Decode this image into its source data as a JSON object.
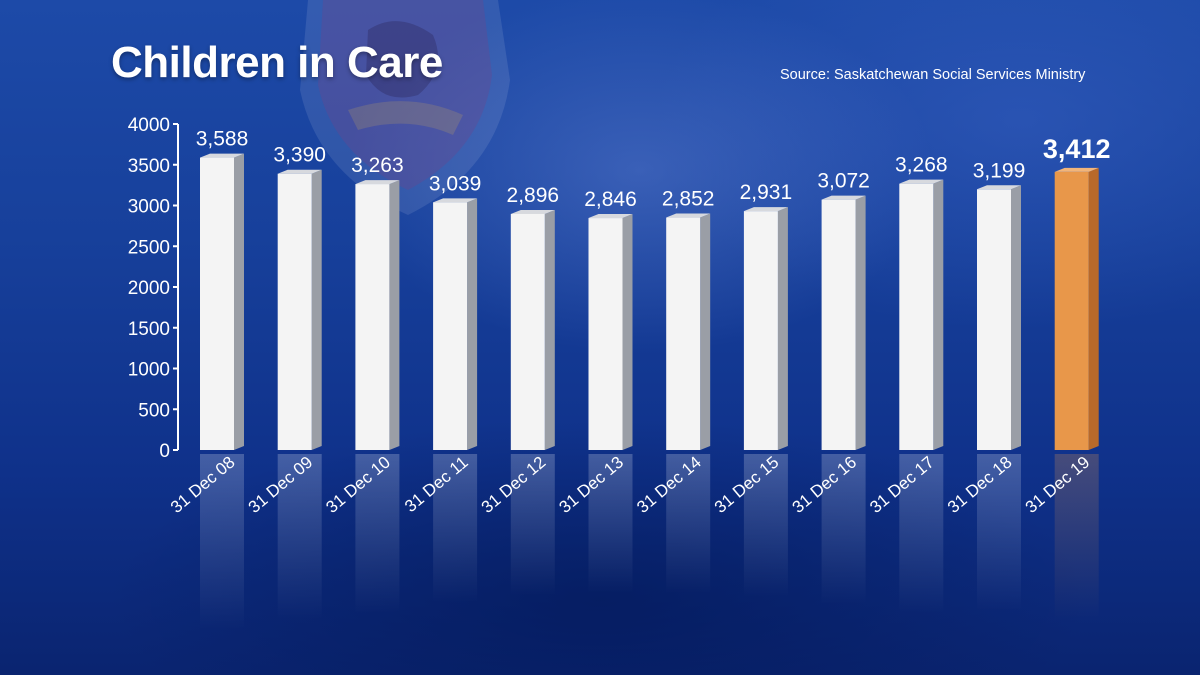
{
  "title": "Children in Care",
  "source": "Source: Saskatchewan Social Services Ministry",
  "colors": {
    "bar": "#f4f4f4",
    "highlight_bar": "#e8974a",
    "axis": "#ffffff",
    "background": "#17409b"
  },
  "chart_data": {
    "type": "bar",
    "title": "Children in Care",
    "xlabel": "",
    "ylabel": "",
    "ylim": [
      0,
      4000
    ],
    "yticks": [
      0,
      500,
      1000,
      1500,
      2000,
      2500,
      3000,
      3500,
      4000
    ],
    "categories": [
      "31 Dec 08",
      "31 Dec 09",
      "31 Dec 10",
      "31 Dec 11",
      "31 Dec 12",
      "31 Dec 13",
      "31 Dec 14",
      "31 Dec 15",
      "31 Dec 16",
      "31 Dec 17",
      "31 Dec 18",
      "31 Dec 19"
    ],
    "values": [
      3588,
      3390,
      3263,
      3039,
      2896,
      2846,
      2852,
      2931,
      3072,
      3268,
      3199,
      3412
    ],
    "value_labels": [
      "3,588",
      "3,390",
      "3,263",
      "3,039",
      "2,896",
      "2,846",
      "2,852",
      "2,931",
      "3,072",
      "3,268",
      "3,199",
      "3,412"
    ],
    "highlight_index": 11,
    "grid": false,
    "legend": "none"
  }
}
